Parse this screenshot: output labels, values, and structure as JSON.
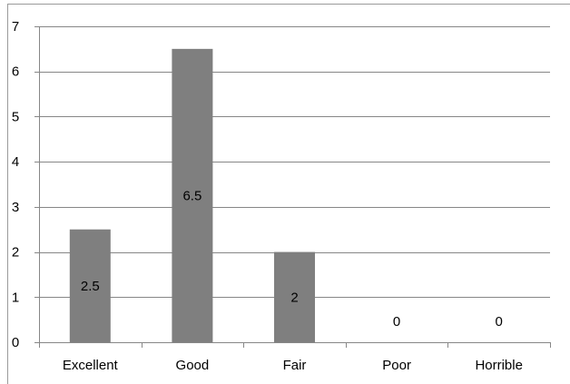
{
  "chart_data": {
    "type": "bar",
    "title": "",
    "categories": [
      "Excellent",
      "Good",
      "Fair",
      "Poor",
      "Horrible"
    ],
    "values": [
      2.5,
      6.5,
      2,
      0,
      0
    ],
    "data_labels": [
      "2.5",
      "6.5",
      "2",
      "0",
      "0"
    ],
    "y_ticks": [
      "0",
      "1",
      "2",
      "3",
      "4",
      "5",
      "6",
      "7"
    ],
    "ylim": [
      0,
      7
    ],
    "xlabel": "",
    "ylabel": "",
    "grid": true,
    "legend": "none",
    "colors": {
      "bar": "#7f7f7f",
      "grid": "#878787",
      "axis": "#878787",
      "text": "#000000"
    }
  }
}
